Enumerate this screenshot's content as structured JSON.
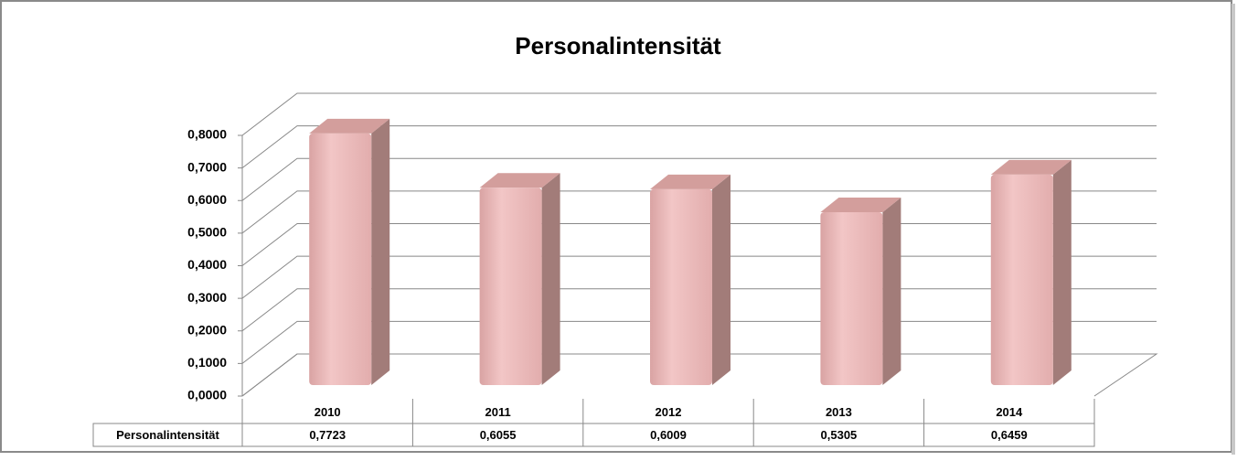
{
  "chart_data": {
    "type": "bar",
    "title": "Personalintensität",
    "categories": [
      "2010",
      "2011",
      "2012",
      "2013",
      "2014"
    ],
    "series": [
      {
        "name": "Personalintensität",
        "color": "#e8b4b4",
        "values": [
          0.7723,
          0.6055,
          0.6009,
          0.5305,
          0.6459
        ],
        "value_labels": [
          "0,7723",
          "0,6055",
          "0,6009",
          "0,5305",
          "0,6459"
        ]
      }
    ],
    "ylim": [
      0,
      0.8
    ],
    "yticks": [
      {
        "value": 0,
        "label": "0,0000"
      },
      {
        "value": 0.1,
        "label": "0,1000"
      },
      {
        "value": 0.2,
        "label": "0,2000"
      },
      {
        "value": 0.3,
        "label": "0,3000"
      },
      {
        "value": 0.4,
        "label": "0,4000"
      },
      {
        "value": 0.5,
        "label": "0,5000"
      },
      {
        "value": 0.6,
        "label": "0,6000"
      },
      {
        "value": 0.7,
        "label": "0,7000"
      },
      {
        "value": 0.8,
        "label": "0,8000"
      }
    ],
    "grid": true,
    "data_table": true
  }
}
